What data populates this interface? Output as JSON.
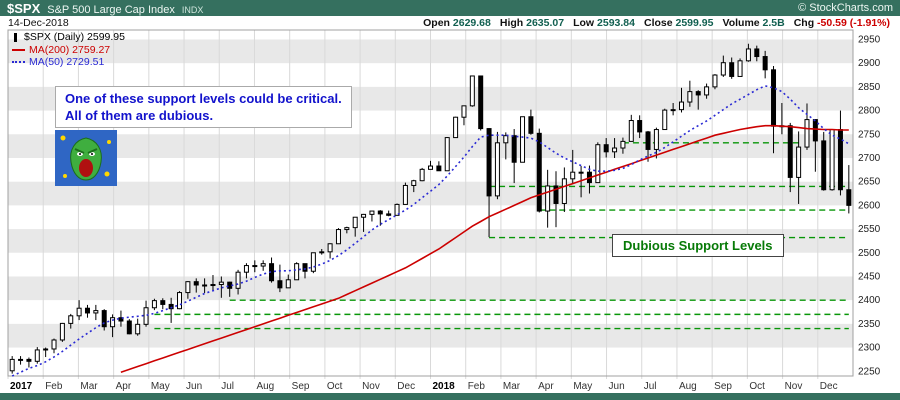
{
  "header": {
    "symbol": "$SPX",
    "index_name": "S&P 500 Large Cap Index",
    "exchange": "INDX",
    "copyright": "© StockCharts.com",
    "date": "14-Dec-2018",
    "quote_fields": [
      {
        "label": "Open",
        "value": "2629.68"
      },
      {
        "label": "High",
        "value": "2635.07"
      },
      {
        "label": "Low",
        "value": "2593.84"
      },
      {
        "label": "Close",
        "value": "2599.95"
      },
      {
        "label": "Volume",
        "value": "2.5B"
      },
      {
        "label": "Chg",
        "value": "-50.59 (-1.91%)",
        "color": "#cc0000"
      }
    ]
  },
  "legend": [
    {
      "label": "$SPX (Daily) 2599.95",
      "color": "#000000",
      "icon": "candlestick-icon"
    },
    {
      "label": "MA(200) 2759.27",
      "color": "#cc0000",
      "icon": "ma200-line-icon"
    },
    {
      "label": "MA(50) 2729.51",
      "color": "#2a2ad4",
      "icon": "ma50-line-icon"
    }
  ],
  "annotation": {
    "line1": "One of these support levels could be critical.",
    "line2": "All of them are dubious."
  },
  "support_box_label": "Dubious Support Levels",
  "colors": {
    "accent_teal": "#35705f",
    "quote_value": "#115f50",
    "chg_red": "#cc0000",
    "ma200_red": "#cc0000",
    "ma50_blue": "#2a2ad4",
    "support_green": "#089608",
    "annotation_blue": "#1212cc",
    "band_gray": "#e8e8e8",
    "grid_gray": "#d9d9d9",
    "candle_black": "#000000"
  },
  "chart_data": {
    "type": "candlestick",
    "title": "$SPX Daily with MA(50), MA(200) and dubious support levels",
    "legend_position": "top-left",
    "grid": "horizontal-bands",
    "first_open": 2251,
    "x_axis": {
      "months": [
        "2017",
        "Feb",
        "Mar",
        "Apr",
        "May",
        "Jun",
        "Jul",
        "Aug",
        "Sep",
        "Oct",
        "Nov",
        "Dec",
        "2018",
        "Feb",
        "Mar",
        "Apr",
        "May",
        "Jun",
        "Jul",
        "Aug",
        "Sep",
        "Oct",
        "Nov",
        "Dec"
      ],
      "bold_labels": [
        "2017",
        "2018"
      ]
    },
    "y_axis": {
      "min": 2240,
      "max": 2970,
      "ticks": [
        2250,
        2300,
        2350,
        2400,
        2450,
        2500,
        2550,
        2600,
        2650,
        2700,
        2750,
        2800,
        2850,
        2900,
        2950
      ]
    },
    "weekly_hlc": [
      [
        2282,
        2245,
        2275
      ],
      [
        2282,
        2264,
        2275
      ],
      [
        2279,
        2258,
        2271
      ],
      [
        2301,
        2266,
        2295
      ],
      [
        2300,
        2280,
        2297
      ],
      [
        2319,
        2288,
        2316
      ],
      [
        2352,
        2312,
        2351
      ],
      [
        2371,
        2340,
        2367
      ],
      [
        2400,
        2358,
        2383
      ],
      [
        2390,
        2363,
        2373
      ],
      [
        2390,
        2358,
        2378
      ],
      [
        2381,
        2336,
        2344
      ],
      [
        2370,
        2322,
        2363
      ],
      [
        2378,
        2344,
        2356
      ],
      [
        2360,
        2328,
        2329
      ],
      [
        2361,
        2325,
        2349
      ],
      [
        2399,
        2344,
        2384
      ],
      [
        2403,
        2379,
        2399
      ],
      [
        2404,
        2381,
        2391
      ],
      [
        2405,
        2352,
        2382
      ],
      [
        2419,
        2381,
        2416
      ],
      [
        2440,
        2403,
        2439
      ],
      [
        2446,
        2416,
        2432
      ],
      [
        2446,
        2415,
        2432
      ],
      [
        2453,
        2419,
        2433
      ],
      [
        2450,
        2405,
        2438
      ],
      [
        2439,
        2407,
        2425
      ],
      [
        2464,
        2412,
        2459
      ],
      [
        2478,
        2446,
        2473
      ],
      [
        2484,
        2459,
        2472
      ],
      [
        2484,
        2462,
        2477
      ],
      [
        2490,
        2437,
        2441
      ],
      [
        2475,
        2417,
        2426
      ],
      [
        2454,
        2428,
        2443
      ],
      [
        2480,
        2446,
        2477
      ],
      [
        2471,
        2446,
        2461
      ],
      [
        2500,
        2457,
        2500
      ],
      [
        2508,
        2496,
        2502
      ],
      [
        2520,
        2488,
        2519
      ],
      [
        2552,
        2520,
        2549
      ],
      [
        2555,
        2541,
        2553
      ],
      [
        2575,
        2534,
        2575
      ],
      [
        2582,
        2544,
        2581
      ],
      [
        2588,
        2566,
        2588
      ],
      [
        2590,
        2557,
        2582
      ],
      [
        2589,
        2577,
        2579
      ],
      [
        2604,
        2580,
        2602
      ],
      [
        2648,
        2605,
        2642
      ],
      [
        2654,
        2628,
        2652
      ],
      [
        2679,
        2651,
        2676
      ],
      [
        2694,
        2676,
        2683
      ],
      [
        2693,
        2673,
        2673
      ],
      [
        2744,
        2674,
        2743
      ],
      [
        2787,
        2748,
        2786
      ],
      [
        2810,
        2769,
        2810
      ],
      [
        2873,
        2808,
        2873
      ],
      [
        2873,
        2758,
        2762
      ],
      [
        2763,
        2533,
        2620
      ],
      [
        2755,
        2613,
        2732
      ],
      [
        2754,
        2697,
        2747
      ],
      [
        2761,
        2647,
        2691
      ],
      [
        2787,
        2694,
        2787
      ],
      [
        2802,
        2749,
        2752
      ],
      [
        2762,
        2585,
        2588
      ],
      [
        2675,
        2553,
        2641
      ],
      [
        2672,
        2554,
        2604
      ],
      [
        2680,
        2586,
        2656
      ],
      [
        2717,
        2645,
        2670
      ],
      [
        2683,
        2617,
        2670
      ],
      [
        2684,
        2625,
        2648
      ],
      [
        2733,
        2648,
        2728
      ],
      [
        2742,
        2701,
        2713
      ],
      [
        2742,
        2700,
        2721
      ],
      [
        2743,
        2709,
        2735
      ],
      [
        2791,
        2736,
        2779
      ],
      [
        2790,
        2742,
        2755
      ],
      [
        2757,
        2692,
        2718
      ],
      [
        2764,
        2699,
        2760
      ],
      [
        2804,
        2763,
        2801
      ],
      [
        2816,
        2790,
        2802
      ],
      [
        2848,
        2796,
        2818
      ],
      [
        2863,
        2808,
        2840
      ],
      [
        2843,
        2802,
        2833
      ],
      [
        2857,
        2825,
        2850
      ],
      [
        2877,
        2845,
        2875
      ],
      [
        2916,
        2871,
        2901
      ],
      [
        2912,
        2867,
        2872
      ],
      [
        2910,
        2886,
        2905
      ],
      [
        2941,
        2903,
        2930
      ],
      [
        2937,
        2904,
        2914
      ],
      [
        2926,
        2868,
        2886
      ],
      [
        2894,
        2710,
        2767
      ],
      [
        2816,
        2750,
        2768
      ],
      [
        2774,
        2628,
        2659
      ],
      [
        2756,
        2603,
        2723
      ],
      [
        2815,
        2717,
        2781
      ],
      [
        2781,
        2671,
        2736
      ],
      [
        2755,
        2631,
        2633
      ],
      [
        2760,
        2631,
        2760
      ],
      [
        2800,
        2621,
        2633
      ],
      [
        2685,
        2583,
        2600
      ]
    ],
    "ma50": [
      2240,
      2248,
      2256,
      2262,
      2270,
      2280,
      2292,
      2305,
      2318,
      2330,
      2342,
      2352,
      2358,
      2362,
      2364,
      2366,
      2368,
      2372,
      2378,
      2384,
      2390,
      2398,
      2406,
      2414,
      2420,
      2426,
      2430,
      2434,
      2440,
      2448,
      2455,
      2460,
      2462,
      2462,
      2464,
      2466,
      2470,
      2476,
      2484,
      2494,
      2506,
      2520,
      2534,
      2548,
      2560,
      2570,
      2580,
      2590,
      2602,
      2616,
      2630,
      2644,
      2662,
      2682,
      2702,
      2724,
      2744,
      2748,
      2748,
      2748,
      2746,
      2744,
      2742,
      2734,
      2722,
      2710,
      2700,
      2692,
      2684,
      2676,
      2672,
      2672,
      2674,
      2678,
      2686,
      2696,
      2704,
      2712,
      2722,
      2734,
      2746,
      2758,
      2768,
      2778,
      2790,
      2802,
      2814,
      2824,
      2834,
      2844,
      2852,
      2848,
      2840,
      2824,
      2806,
      2792,
      2778,
      2762,
      2748,
      2740,
      2730
    ],
    "ma200": [
      null,
      null,
      null,
      null,
      null,
      null,
      null,
      null,
      null,
      null,
      null,
      null,
      null,
      2248,
      2254,
      2260,
      2266,
      2272,
      2278,
      2284,
      2290,
      2296,
      2302,
      2308,
      2314,
      2320,
      2326,
      2332,
      2338,
      2344,
      2350,
      2356,
      2362,
      2368,
      2374,
      2380,
      2386,
      2392,
      2398,
      2404,
      2412,
      2420,
      2428,
      2436,
      2444,
      2452,
      2460,
      2468,
      2478,
      2488,
      2498,
      2508,
      2520,
      2532,
      2544,
      2556,
      2566,
      2576,
      2584,
      2592,
      2600,
      2608,
      2616,
      2622,
      2628,
      2634,
      2640,
      2646,
      2652,
      2658,
      2664,
      2670,
      2676,
      2682,
      2688,
      2694,
      2700,
      2706,
      2712,
      2718,
      2724,
      2730,
      2736,
      2742,
      2748,
      2752,
      2756,
      2760,
      2763,
      2766,
      2768,
      2768,
      2767,
      2766,
      2764,
      2762,
      2761,
      2760,
      2760,
      2759,
      2759
    ],
    "support_levels": [
      {
        "value": 2732,
        "from_week": 73,
        "to_week": 94
      },
      {
        "value": 2640,
        "from_week": 57,
        "to_week": 100
      },
      {
        "value": 2590,
        "from_week": 63,
        "to_week": 100
      },
      {
        "value": 2532,
        "from_week": 57,
        "to_week": 100
      },
      {
        "value": 2400,
        "from_week": 26,
        "to_week": 100
      },
      {
        "value": 2370,
        "from_week": 17,
        "to_week": 100
      },
      {
        "value": 2340,
        "from_week": 17,
        "to_week": 100
      }
    ]
  }
}
